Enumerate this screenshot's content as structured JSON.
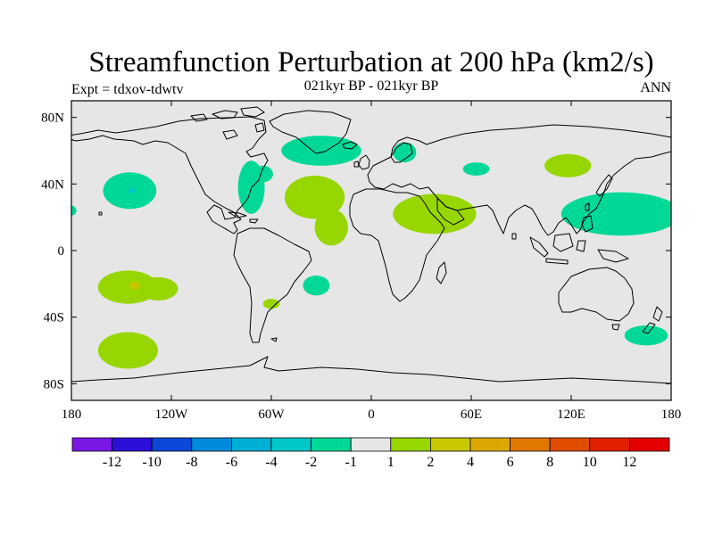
{
  "title": "Streamfunction Perturbation at 200 hPa (km2/s)",
  "subtitle": "021kyr BP - 021kyr BP",
  "experiment": "Expt = tdxov-tdwtv",
  "period": "ANN",
  "map": {
    "projection": "cylindrical-equidistant",
    "background_color": "#e6e6e6",
    "lat_ticks": [
      {
        "value": 80,
        "label": "80N"
      },
      {
        "value": 40,
        "label": "40N"
      },
      {
        "value": 0,
        "label": "0"
      },
      {
        "value": -40,
        "label": "40S"
      },
      {
        "value": -80,
        "label": "80S"
      }
    ],
    "lon_ticks": [
      {
        "value": -180,
        "label": "180"
      },
      {
        "value": -120,
        "label": "120W"
      },
      {
        "value": -60,
        "label": "60W"
      },
      {
        "value": 0,
        "label": "0"
      },
      {
        "value": 60,
        "label": "60E"
      },
      {
        "value": 120,
        "label": "120E"
      },
      {
        "value": 180,
        "label": "180"
      }
    ],
    "anomalies": [
      {
        "sign": "negative",
        "level": "-2",
        "color": "#00d897",
        "lon": -145,
        "lat": 36,
        "rlon": 16,
        "rlat": 11
      },
      {
        "sign": "negative",
        "level": "-4",
        "color": "#00c7c7",
        "lon": -144,
        "lat": 36,
        "rlon": 2,
        "rlat": 1.5
      },
      {
        "sign": "negative",
        "level": "-2",
        "color": "#00d897",
        "lon": -180,
        "lat": 24,
        "rlon": 3,
        "rlat": 3
      },
      {
        "sign": "negative",
        "level": "-2",
        "color": "#00d897",
        "lon": -72,
        "lat": 38,
        "rlon": 8,
        "rlat": 16
      },
      {
        "sign": "negative",
        "level": "-2",
        "color": "#00d897",
        "lon": -65,
        "lat": 46,
        "rlon": 6,
        "rlat": 5
      },
      {
        "sign": "negative",
        "level": "-2",
        "color": "#00d897",
        "lon": -30,
        "lat": 60,
        "rlon": 24,
        "rlat": 9
      },
      {
        "sign": "negative",
        "level": "-2",
        "color": "#00d897",
        "lon": 20,
        "lat": 59,
        "rlon": 7,
        "rlat": 6
      },
      {
        "sign": "negative",
        "level": "-2",
        "color": "#00d897",
        "lon": 63,
        "lat": 49,
        "rlon": 8,
        "rlat": 4
      },
      {
        "sign": "negative",
        "level": "-2",
        "color": "#00d897",
        "lon": 150,
        "lat": 22,
        "rlon": 36,
        "rlat": 13
      },
      {
        "sign": "negative",
        "level": "-2",
        "color": "#00d897",
        "lon": -33,
        "lat": -21,
        "rlon": 8,
        "rlat": 6
      },
      {
        "sign": "negative",
        "level": "-2",
        "color": "#00d897",
        "lon": 165,
        "lat": -51,
        "rlon": 13,
        "rlat": 6
      },
      {
        "sign": "positive",
        "level": "1",
        "color": "#98d600",
        "lon": -34,
        "lat": 32,
        "rlon": 18,
        "rlat": 13
      },
      {
        "sign": "positive",
        "level": "1",
        "color": "#98d600",
        "lon": -24,
        "lat": 14,
        "rlon": 10,
        "rlat": 11
      },
      {
        "sign": "positive",
        "level": "1",
        "color": "#98d600",
        "lon": 38,
        "lat": 22,
        "rlon": 25,
        "rlat": 12
      },
      {
        "sign": "positive",
        "level": "1",
        "color": "#98d600",
        "lon": 118,
        "lat": 51,
        "rlon": 14,
        "rlat": 7
      },
      {
        "sign": "positive",
        "level": "1",
        "color": "#98d600",
        "lon": -146,
        "lat": -22,
        "rlon": 18,
        "rlat": 10
      },
      {
        "sign": "positive",
        "level": "1",
        "color": "#98d600",
        "lon": -128,
        "lat": -23,
        "rlon": 12,
        "rlat": 7
      },
      {
        "sign": "positive",
        "level": "2",
        "color": "#c8c800",
        "lon": -142,
        "lat": -21,
        "rlon": 3,
        "rlat": 2.5
      },
      {
        "sign": "positive",
        "level": "1",
        "color": "#98d600",
        "lon": -60,
        "lat": -32,
        "rlon": 5,
        "rlat": 3
      },
      {
        "sign": "positive",
        "level": "1",
        "color": "#98d600",
        "lon": -146,
        "lat": -60,
        "rlon": 18,
        "rlat": 11
      }
    ]
  },
  "colorbar": {
    "colors": [
      "#7a18e6",
      "#2a10d8",
      "#0c48d8",
      "#008bdc",
      "#00b0d4",
      "#00c7c7",
      "#00d897",
      "#e6e6e6",
      "#98d600",
      "#c8c800",
      "#dca800",
      "#e07800",
      "#e04c00",
      "#e02000",
      "#e40000"
    ],
    "labels": [
      "-12",
      "-10",
      "-8",
      "-6",
      "-4",
      "-2",
      "-1",
      "1",
      "2",
      "4",
      "6",
      "8",
      "10",
      "12"
    ]
  }
}
